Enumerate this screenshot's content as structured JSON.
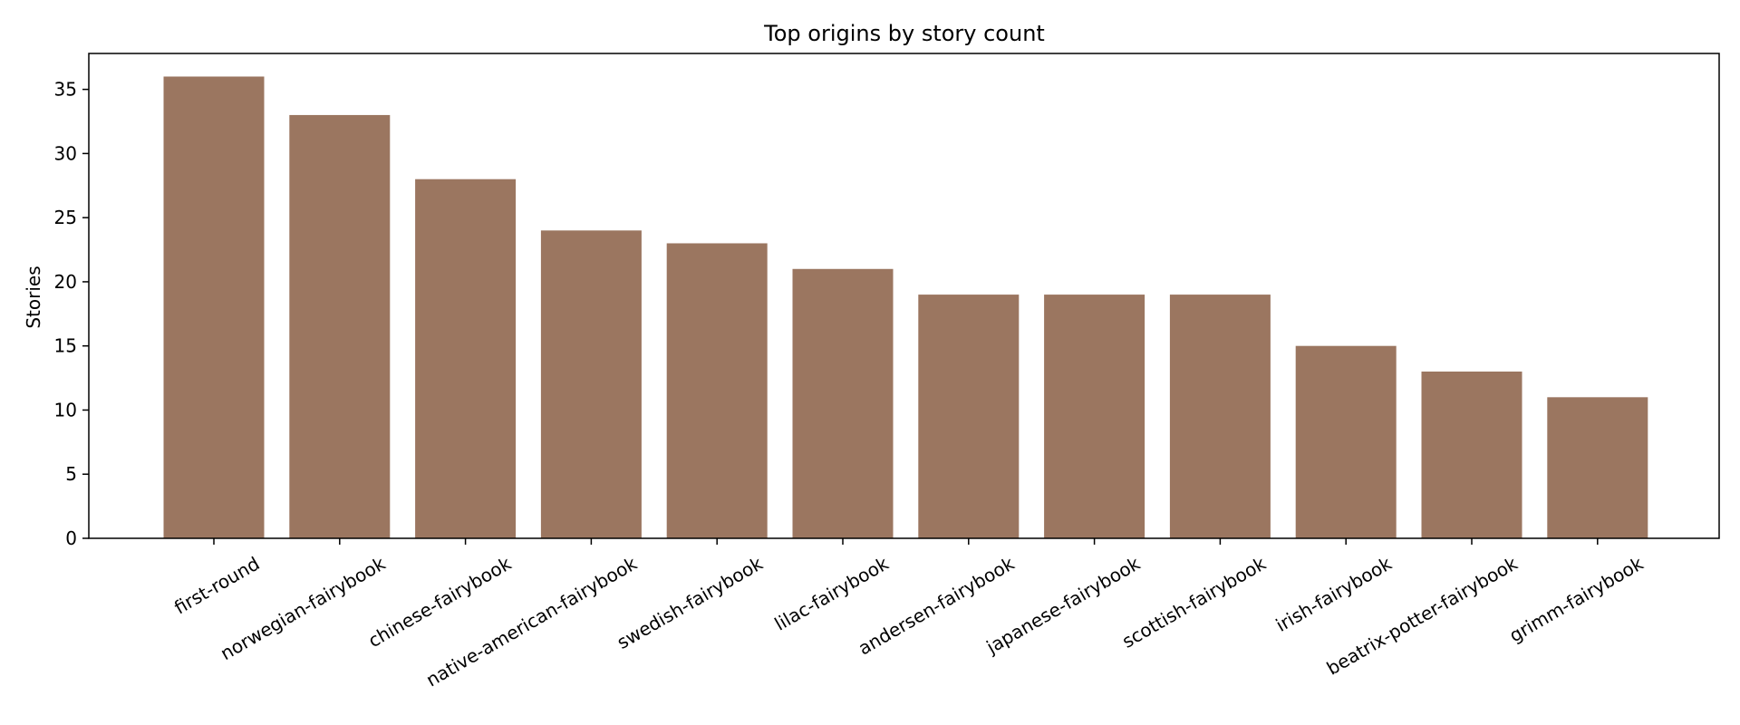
{
  "chart_data": {
    "type": "bar",
    "title": "Top origins by story count",
    "xlabel": "",
    "ylabel": "Stories",
    "categories": [
      "first-round",
      "norwegian-fairybook",
      "chinese-fairybook",
      "native-american-fairybook",
      "swedish-fairybook",
      "lilac-fairybook",
      "andersen-fairybook",
      "japanese-fairybook",
      "scottish-fairybook",
      "irish-fairybook",
      "beatrix-potter-fairybook",
      "grimm-fairybook"
    ],
    "values": [
      36,
      33,
      28,
      24,
      23,
      21,
      19,
      19,
      19,
      15,
      13,
      11
    ],
    "ylim": [
      0,
      37.8
    ],
    "yticks": [
      0,
      5,
      10,
      15,
      20,
      25,
      30,
      35
    ],
    "grid": false,
    "legend": "none",
    "bar_color": "#9b7660"
  }
}
